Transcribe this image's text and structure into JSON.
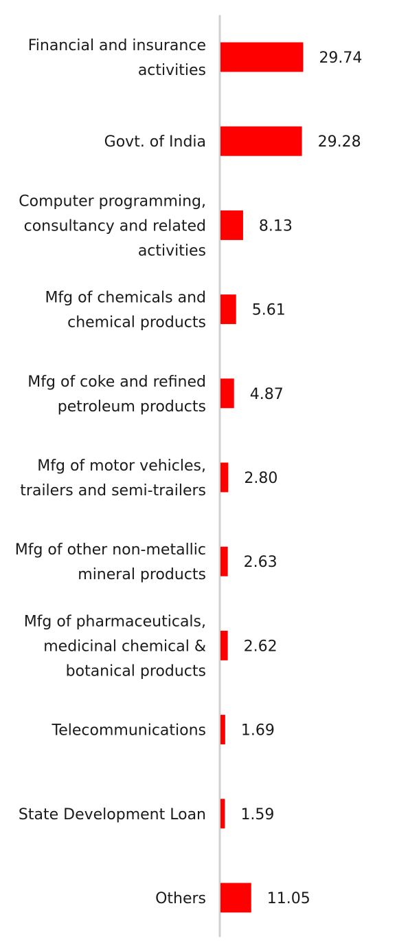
{
  "chart_data": {
    "type": "bar",
    "orientation": "horizontal",
    "categories": [
      [
        "Financial and insurance",
        "activities"
      ],
      [
        "Govt. of India"
      ],
      [
        "Computer programming,",
        "consultancy and related",
        "activities"
      ],
      [
        "Mfg of chemicals and",
        "chemical products"
      ],
      [
        "Mfg of coke and refined",
        "petroleum products"
      ],
      [
        "Mfg of motor vehicles,",
        "trailers and semi-trailers"
      ],
      [
        "Mfg of other non-metallic",
        "mineral products"
      ],
      [
        "Mfg of pharmaceuticals,",
        "medicinal chemical &",
        "botanical products"
      ],
      [
        "Telecommunications"
      ],
      [
        "State Development Loan"
      ],
      [
        "Others"
      ]
    ],
    "values": [
      29.74,
      29.28,
      8.13,
      5.61,
      4.87,
      2.8,
      2.63,
      2.62,
      1.69,
      1.59,
      11.05
    ],
    "value_labels": [
      "29.74",
      "29.28",
      "8.13",
      "5.61",
      "4.87",
      "2.80",
      "2.63",
      "2.62",
      "1.69",
      "1.59",
      "11.05"
    ],
    "title": "",
    "xlabel": "",
    "ylabel": "",
    "xlim": [
      0,
      40
    ],
    "grid": false,
    "legend": "none",
    "colors": {
      "bar": "#ff0000",
      "axis": "#d0d0d0",
      "text": "#1a1a1a"
    }
  }
}
